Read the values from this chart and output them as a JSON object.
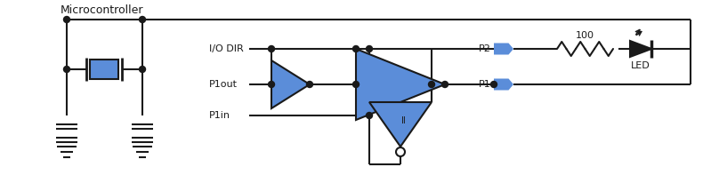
{
  "bg": "#ffffff",
  "lc": "#1a1a1a",
  "blue": "#5b8dd9",
  "lw": 1.5,
  "figsize": [
    7.99,
    1.97
  ],
  "dpi": 100,
  "micro_label": "Microcontroller",
  "io_dir_label": "I/O DIR",
  "p1out_label": "P1out",
  "p1in_label": "P1in",
  "p2_label": "P2",
  "p1_label": "P1",
  "r100_label": "100",
  "led_label": "LED"
}
